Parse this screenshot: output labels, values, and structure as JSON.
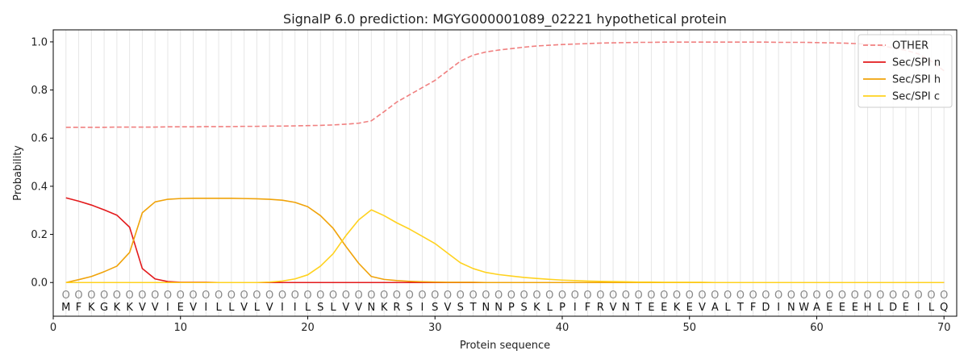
{
  "chart_data": {
    "type": "line",
    "title": "SignalP 6.0 prediction: MGYG000001089_02221 hypothetical protein",
    "xlabel": "Protein sequence",
    "ylabel": "Probability",
    "xlim": [
      0,
      71
    ],
    "ylim": [
      -0.14,
      1.05
    ],
    "x_ticks": [
      "0",
      "10",
      "20",
      "30",
      "40",
      "50",
      "60",
      "70"
    ],
    "y_ticks": [
      "0.0",
      "0.2",
      "0.4",
      "0.6",
      "0.8",
      "1.0"
    ],
    "grid": "vertical lines at each residue",
    "legend_position": "top-right",
    "sequence": [
      "M",
      "F",
      "K",
      "G",
      "K",
      "K",
      "V",
      "V",
      "I",
      "E",
      "V",
      "I",
      "L",
      "L",
      "V",
      "L",
      "V",
      "I",
      "I",
      "L",
      "S",
      "L",
      "V",
      "V",
      "N",
      "K",
      "R",
      "S",
      "I",
      "S",
      "V",
      "S",
      "T",
      "N",
      "N",
      "P",
      "S",
      "K",
      "L",
      "P",
      "I",
      "F",
      "R",
      "V",
      "N",
      "T",
      "E",
      "E",
      "K",
      "E",
      "V",
      "A",
      "L",
      "T",
      "F",
      "D",
      "I",
      "N",
      "W",
      "A",
      "E",
      "E",
      "E",
      "H",
      "L",
      "D",
      "E",
      "I",
      "L",
      "Q"
    ],
    "prediction_labels": [
      "O",
      "O",
      "O",
      "O",
      "O",
      "O",
      "O",
      "O",
      "O",
      "O",
      "O",
      "O",
      "O",
      "O",
      "O",
      "O",
      "O",
      "O",
      "O",
      "O",
      "O",
      "O",
      "O",
      "O",
      "O",
      "O",
      "O",
      "O",
      "O",
      "O",
      "O",
      "O",
      "O",
      "O",
      "O",
      "O",
      "O",
      "O",
      "O",
      "O",
      "O",
      "O",
      "O",
      "O",
      "O",
      "O",
      "O",
      "O",
      "O",
      "O",
      "O",
      "O",
      "O",
      "O",
      "O",
      "O",
      "O",
      "O",
      "O",
      "O",
      "O",
      "O",
      "O",
      "O",
      "O",
      "O",
      "O",
      "O",
      "O",
      "O"
    ],
    "series": [
      {
        "name": "OTHER",
        "color": "#f08080",
        "style": "dashed",
        "values": [
          0.645,
          0.645,
          0.645,
          0.645,
          0.646,
          0.646,
          0.646,
          0.646,
          0.647,
          0.647,
          0.647,
          0.648,
          0.648,
          0.648,
          0.649,
          0.649,
          0.65,
          0.65,
          0.651,
          0.652,
          0.653,
          0.655,
          0.658,
          0.662,
          0.672,
          0.71,
          0.75,
          0.78,
          0.81,
          0.84,
          0.88,
          0.92,
          0.945,
          0.958,
          0.966,
          0.972,
          0.978,
          0.983,
          0.986,
          0.989,
          0.991,
          0.993,
          0.995,
          0.996,
          0.997,
          0.998,
          0.998,
          0.999,
          0.999,
          0.999,
          0.999,
          0.999,
          0.999,
          0.999,
          0.999,
          0.999,
          0.998,
          0.998,
          0.998,
          0.997,
          0.996,
          0.995,
          0.993,
          0.99,
          0.985,
          0.975,
          0.965,
          0.95,
          0.92,
          0.88
        ]
      },
      {
        "name": "Sec/SPI n",
        "color": "#e31a1c",
        "style": "solid",
        "values": [
          0.352,
          0.338,
          0.322,
          0.302,
          0.28,
          0.23,
          0.058,
          0.015,
          0.004,
          0.001,
          0.001,
          0.001,
          0.0,
          0.0,
          0.0,
          0.0,
          0.0,
          0.0,
          0.0,
          0.0,
          0.0,
          0.0,
          0.0,
          0.0,
          0.0,
          0.0,
          0.0,
          0.0,
          0.0,
          0.0,
          0.0,
          0.0,
          0.0,
          0.0,
          0.0,
          0.0,
          0.0,
          0.0,
          0.0,
          0.0,
          0.0,
          0.0,
          0.0,
          0.0,
          0.0,
          0.0,
          0.0,
          0.0,
          0.0,
          0.0,
          0.0,
          0.0,
          0.0,
          0.0,
          0.0,
          0.0,
          0.0,
          0.0,
          0.0,
          0.0,
          0.0,
          0.0,
          0.0,
          0.0,
          0.0,
          0.0,
          0.0,
          0.0,
          0.0,
          0.0
        ]
      },
      {
        "name": "Sec/SPI h",
        "color": "#f0a30a",
        "style": "solid",
        "values": [
          0.0,
          0.012,
          0.025,
          0.045,
          0.068,
          0.125,
          0.29,
          0.335,
          0.346,
          0.349,
          0.35,
          0.35,
          0.35,
          0.35,
          0.349,
          0.348,
          0.346,
          0.342,
          0.333,
          0.315,
          0.278,
          0.225,
          0.15,
          0.08,
          0.025,
          0.013,
          0.008,
          0.005,
          0.003,
          0.002,
          0.001,
          0.001,
          0.001,
          0.0,
          0.0,
          0.0,
          0.0,
          0.0,
          0.0,
          0.0,
          0.0,
          0.0,
          0.0,
          0.0,
          0.0,
          0.0,
          0.0,
          0.0,
          0.0,
          0.0,
          0.0,
          0.0,
          0.0,
          0.0,
          0.0,
          0.0,
          0.0,
          0.0,
          0.0,
          0.0,
          0.0,
          0.0,
          0.0,
          0.0,
          0.0,
          0.0,
          0.0,
          0.0,
          0.0,
          0.0
        ]
      },
      {
        "name": "Sec/SPI c",
        "color": "#ffd21f",
        "style": "solid",
        "values": [
          0.0,
          0.0,
          0.0,
          0.0,
          0.0,
          0.0,
          0.0,
          0.0,
          0.0,
          0.0,
          0.0,
          0.0,
          0.0,
          0.0,
          0.0,
          0.0,
          0.002,
          0.006,
          0.015,
          0.032,
          0.068,
          0.12,
          0.195,
          0.26,
          0.302,
          0.278,
          0.248,
          0.222,
          0.192,
          0.162,
          0.122,
          0.082,
          0.058,
          0.042,
          0.033,
          0.027,
          0.021,
          0.017,
          0.013,
          0.01,
          0.008,
          0.006,
          0.005,
          0.004,
          0.003,
          0.002,
          0.002,
          0.001,
          0.001,
          0.001,
          0.001,
          0.0,
          0.0,
          0.0,
          0.0,
          0.0,
          0.0,
          0.0,
          0.0,
          0.0,
          0.0,
          0.0,
          0.0,
          0.0,
          0.0,
          0.0,
          0.0,
          0.0,
          0.0,
          0.0
        ]
      }
    ]
  }
}
